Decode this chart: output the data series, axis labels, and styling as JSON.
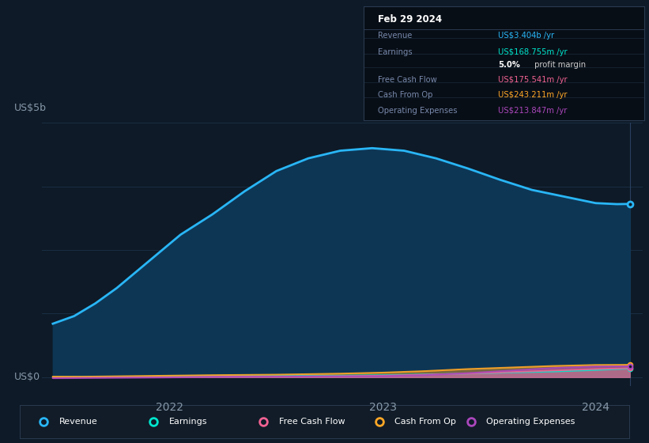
{
  "bg_color": "#0e1a27",
  "plot_bg_color": "#0e1a27",
  "ylabel_top": "US$5b",
  "ylabel_bottom": "US$0",
  "x_ticks": [
    "2022",
    "2023",
    "2024"
  ],
  "x_tick_pos": [
    2022,
    2023,
    2024
  ],
  "revenue": {
    "color": "#29b6f6",
    "fill_color": "#0d3655",
    "x": [
      2021.45,
      2021.55,
      2021.65,
      2021.75,
      2021.85,
      2021.95,
      2022.05,
      2022.2,
      2022.35,
      2022.5,
      2022.65,
      2022.8,
      2022.95,
      2023.1,
      2023.25,
      2023.4,
      2023.55,
      2023.7,
      2023.85,
      2024.0,
      2024.1,
      2024.16
    ],
    "y": [
      1.05,
      1.2,
      1.45,
      1.75,
      2.1,
      2.45,
      2.8,
      3.2,
      3.65,
      4.05,
      4.3,
      4.45,
      4.5,
      4.45,
      4.3,
      4.1,
      3.88,
      3.68,
      3.55,
      3.42,
      3.4,
      3.404
    ]
  },
  "earnings": {
    "color": "#00e5cc",
    "x": [
      2021.45,
      2021.6,
      2021.8,
      2022.0,
      2022.2,
      2022.5,
      2022.8,
      2023.0,
      2023.2,
      2023.4,
      2023.6,
      2023.8,
      2024.0,
      2024.16
    ],
    "y": [
      0.0,
      0.005,
      0.01,
      0.015,
      0.02,
      0.025,
      0.03,
      0.04,
      0.055,
      0.07,
      0.09,
      0.11,
      0.14,
      0.1688
    ]
  },
  "freecashflow": {
    "color": "#f06292",
    "x": [
      2021.45,
      2021.6,
      2021.8,
      2022.0,
      2022.2,
      2022.5,
      2022.8,
      2023.0,
      2023.2,
      2023.4,
      2023.6,
      2023.8,
      2024.0,
      2024.16
    ],
    "y": [
      -0.01,
      -0.005,
      0.0,
      0.005,
      0.01,
      0.015,
      0.02,
      0.03,
      0.05,
      0.07,
      0.1,
      0.13,
      0.16,
      0.1755
    ]
  },
  "cashfromop": {
    "color": "#ffa726",
    "x": [
      2021.45,
      2021.6,
      2021.8,
      2022.0,
      2022.2,
      2022.5,
      2022.8,
      2023.0,
      2023.2,
      2023.4,
      2023.6,
      2023.8,
      2024.0,
      2024.16
    ],
    "y": [
      0.01,
      0.01,
      0.02,
      0.03,
      0.04,
      0.05,
      0.07,
      0.09,
      0.12,
      0.16,
      0.19,
      0.22,
      0.24,
      0.2432
    ]
  },
  "opexpenses": {
    "color": "#ab47bc",
    "x": [
      2021.45,
      2021.6,
      2021.8,
      2022.0,
      2022.2,
      2022.5,
      2022.8,
      2023.0,
      2023.2,
      2023.4,
      2023.6,
      2023.8,
      2024.0,
      2024.16
    ],
    "y": [
      -0.02,
      -0.015,
      -0.01,
      -0.005,
      0.005,
      0.01,
      0.015,
      0.02,
      0.04,
      0.08,
      0.13,
      0.18,
      0.21,
      0.2138
    ]
  },
  "xlim": [
    2021.4,
    2024.22
  ],
  "ylim": [
    -0.18,
    5.0
  ],
  "grid_color": "#1a2e44",
  "grid_y": [
    0.0,
    1.25,
    2.5,
    3.75,
    5.0
  ],
  "vline_x": 2024.16,
  "vline_color": "#2a4060",
  "legend": [
    {
      "label": "Revenue",
      "color": "#29b6f6"
    },
    {
      "label": "Earnings",
      "color": "#00e5cc"
    },
    {
      "label": "Free Cash Flow",
      "color": "#f06292"
    },
    {
      "label": "Cash From Op",
      "color": "#ffa726"
    },
    {
      "label": "Operating Expenses",
      "color": "#ab47bc"
    }
  ],
  "infobox": {
    "title": "Feb 29 2024",
    "rows": [
      {
        "label": "Revenue",
        "value": "US$3.404b",
        "suffix": " /yr",
        "color": "#29b6f6"
      },
      {
        "label": "Earnings",
        "value": "US$168.755m",
        "suffix": " /yr",
        "color": "#00e5cc"
      },
      {
        "label": "",
        "value": "5.0%",
        "suffix": " profit margin",
        "color": "#ffffff",
        "bold": true
      },
      {
        "label": "Free Cash Flow",
        "value": "US$175.541m",
        "suffix": " /yr",
        "color": "#f06292"
      },
      {
        "label": "Cash From Op",
        "value": "US$243.211m",
        "suffix": " /yr",
        "color": "#ffa726"
      },
      {
        "label": "Operating Expenses",
        "value": "US$213.847m",
        "suffix": " /yr",
        "color": "#ab47bc"
      }
    ]
  }
}
